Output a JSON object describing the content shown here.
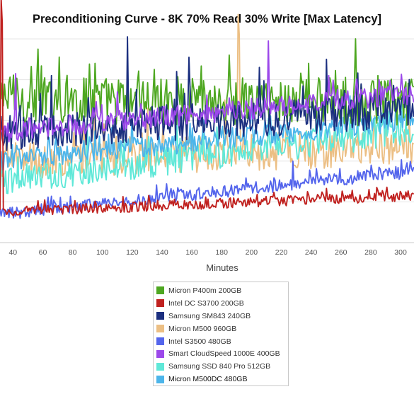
{
  "chart_data": {
    "type": "line",
    "title": "Preconditioning Curve - 8K 70% Read 30% Write [Max Latency]",
    "xlabel": "Minutes",
    "ylabel": "",
    "x_ticks": [
      40,
      60,
      80,
      100,
      120,
      140,
      160,
      180,
      200,
      220,
      240,
      260,
      280,
      300
    ],
    "xlim": [
      31.3,
      309
    ],
    "ylim": [
      0,
      100
    ],
    "grid": "horizontal",
    "legend_placement": "bottom",
    "series": [
      {
        "name": "Micron P400m 200GB",
        "color": "#4ea721",
        "level": [
          70,
          69
        ],
        "noise": 12,
        "spikes": [
          [
            57,
            95
          ],
          [
            95,
            88
          ],
          [
            135,
            85
          ],
          [
            185,
            92
          ],
          [
            238,
            88
          ],
          [
            270,
            100
          ],
          [
            285,
            82
          ]
        ]
      },
      {
        "name": "Intel DC S3700 200GB",
        "color": "#c0211f",
        "level": [
          15,
          23
        ],
        "noise": 2.5,
        "spikes": [
          [
            32,
            120
          ],
          [
            33,
            108
          ]
        ]
      },
      {
        "name": "Samsung SM843 240GB",
        "color": "#1b2f7f",
        "level": [
          54,
          65
        ],
        "noise": 9,
        "spikes": [
          [
            66,
            82
          ],
          [
            117,
            101
          ],
          [
            150,
            84
          ],
          [
            158,
            91
          ],
          [
            205,
            86
          ],
          [
            250,
            90
          ],
          [
            306,
            80
          ]
        ]
      },
      {
        "name": "Micron M500 960GB",
        "color": "#ecbf84",
        "level": [
          40,
          47
        ],
        "noise": 9,
        "spikes": [
          [
            95,
            72
          ],
          [
            130,
            66
          ],
          [
            182,
            70
          ],
          [
            191,
            112
          ],
          [
            192,
            102
          ]
        ]
      },
      {
        "name": "Intel S3500 480GB",
        "color": "#5465ec",
        "level": [
          14,
          35
        ],
        "noise": 3.2,
        "spikes": [
          [
            228,
            40
          ],
          [
            280,
            38
          ]
        ]
      },
      {
        "name": "Smart CloudSpeed 1000E 400GB",
        "color": "#9c48ea",
        "level": [
          54,
          73
        ],
        "noise": 5,
        "spikes": [
          [
            42,
            83
          ],
          [
            110,
            74
          ],
          [
            211,
            99
          ],
          [
            252,
            82
          ],
          [
            294,
            76
          ]
        ]
      },
      {
        "name": "Samsung SSD 840 Pro 512GB",
        "color": "#5fe8d8",
        "level": [
          30,
          55
        ],
        "noise": 7,
        "spikes": [
          [
            43,
            42
          ],
          [
            90,
            60
          ],
          [
            150,
            66
          ]
        ]
      },
      {
        "name": "Micron M500DC 480GB",
        "color": "#4cb5ea",
        "level": [
          40,
          60
        ],
        "noise": 5,
        "spikes": [
          [
            120,
            62
          ],
          [
            200,
            70
          ],
          [
            266,
            72
          ]
        ]
      }
    ]
  }
}
